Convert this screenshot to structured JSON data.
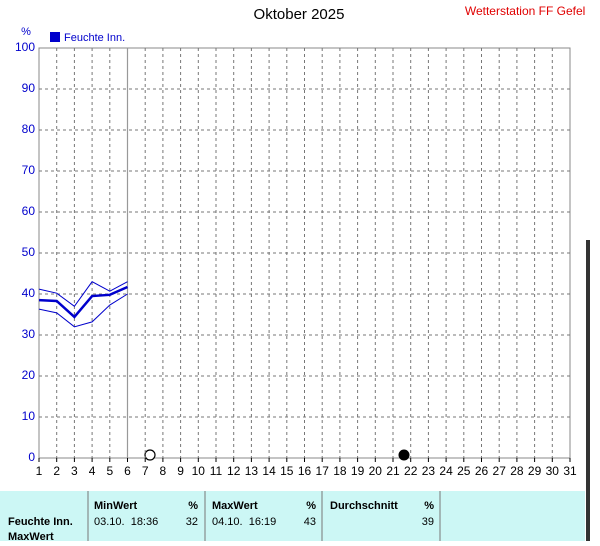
{
  "chart_data": {
    "type": "line",
    "title": "Oktober 2025",
    "station": "Wetterstation FF Gefell",
    "ylabel": "%",
    "x": [
      1,
      2,
      3,
      4,
      5,
      6
    ],
    "series": [
      {
        "name": "Feuchte Inn.",
        "color": "#0000cc",
        "values": [
          38.5,
          38.3,
          34.4,
          39.5,
          39.8,
          41.7
        ],
        "max_values": [
          41.2,
          40.2,
          37,
          43,
          40.7,
          43
        ],
        "min_values": [
          36.3,
          35.4,
          32,
          33.2,
          37.3,
          40
        ]
      }
    ],
    "xlim": [
      1,
      31
    ],
    "xticks": [
      1,
      2,
      3,
      4,
      5,
      6,
      7,
      8,
      9,
      10,
      11,
      12,
      13,
      14,
      15,
      16,
      17,
      18,
      19,
      20,
      21,
      22,
      23,
      24,
      25,
      26,
      27,
      28,
      29,
      30,
      31
    ],
    "ylim": [
      0,
      100
    ],
    "yticks": [
      0,
      10,
      20,
      30,
      40,
      50,
      60,
      70,
      80,
      90,
      100
    ],
    "grid": true
  },
  "summary_table": {
    "headers": [
      "MinWert",
      "%",
      "MaxWert",
      "%",
      "Durchschnitt",
      "%"
    ],
    "rows": [
      [
        "Feuchte Inn.",
        "03.10.  18:36",
        32,
        "04.10.  16:19",
        43,
        39
      ]
    ],
    "next_row_label": "MaxWert"
  }
}
